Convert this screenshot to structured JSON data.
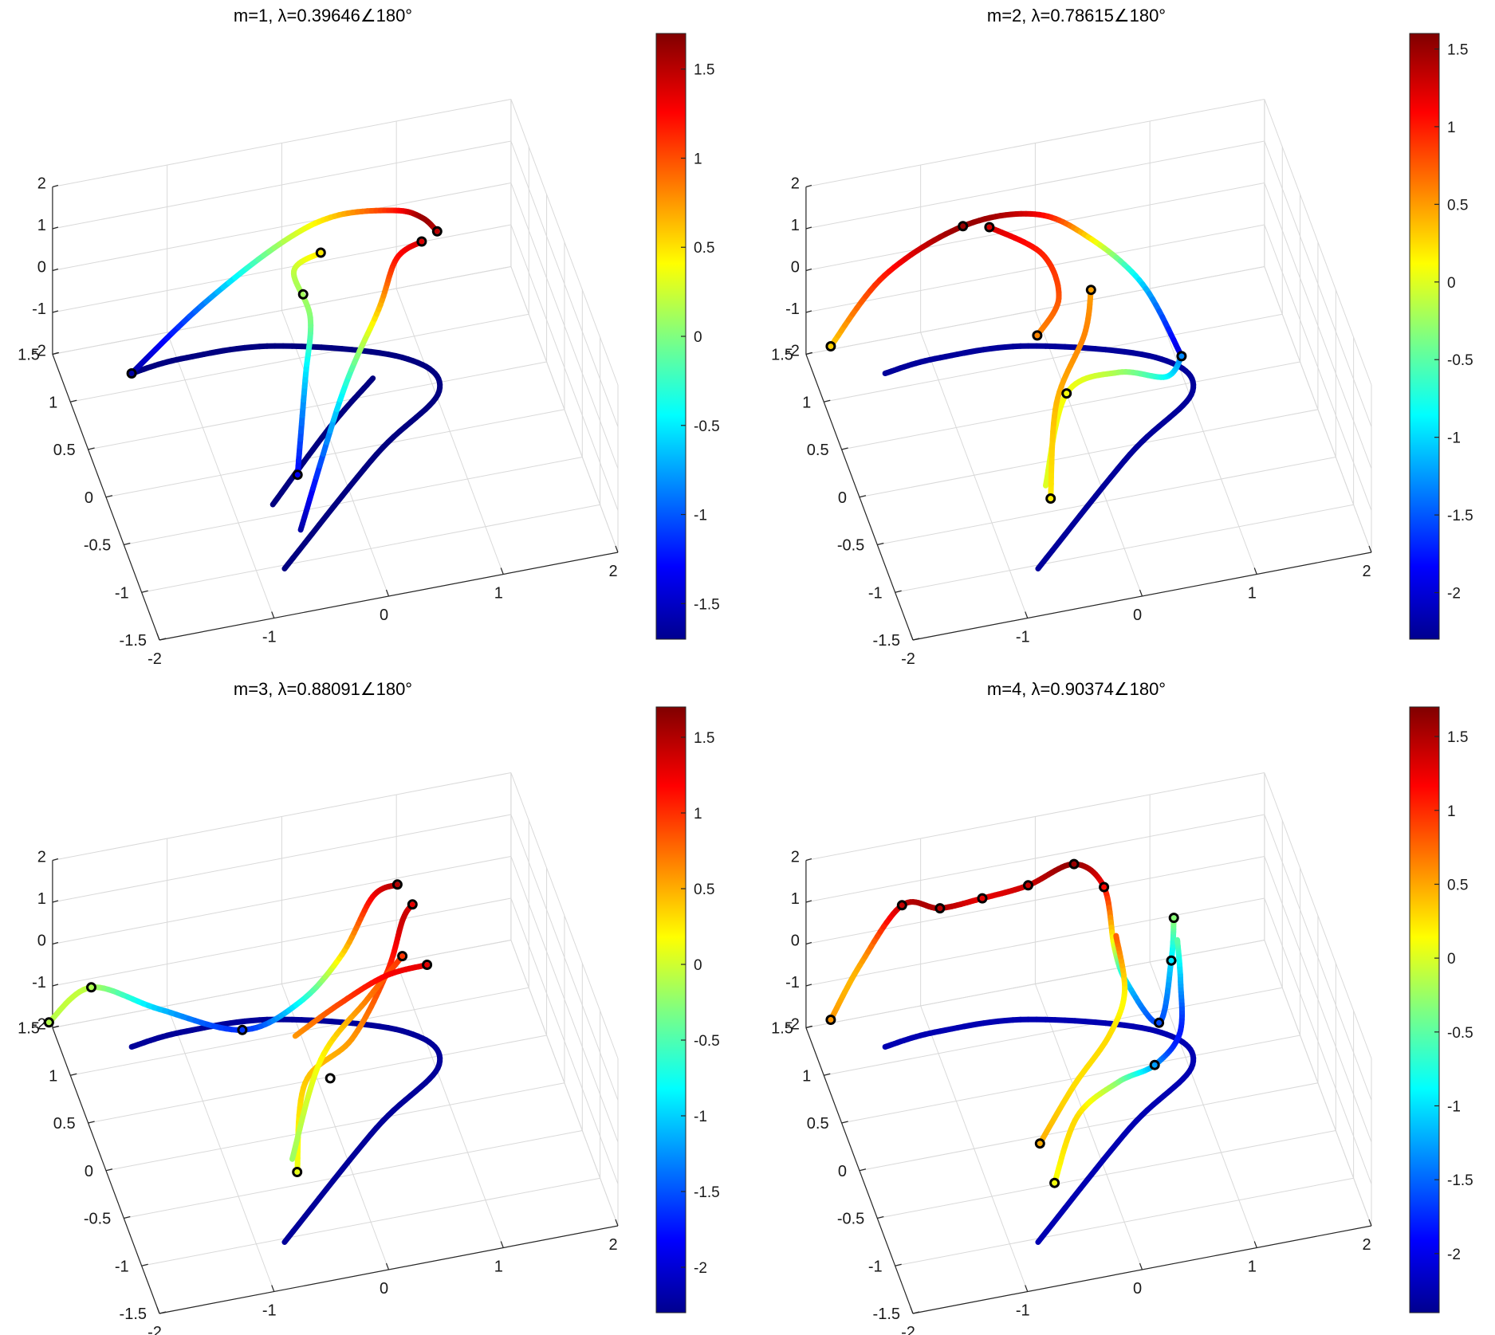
{
  "figure": {
    "layout": "2x2 grid of 3-D trajectory plots with colorbars",
    "colormap": "jet"
  },
  "chart_data": [
    {
      "type": "scatter",
      "title": "m=1, λ=0.39646∠180°",
      "xlabel": "",
      "ylabel": "",
      "zlabel": "",
      "x_ticks": [
        "-2",
        "-1",
        "0",
        "1",
        "2"
      ],
      "y_ticks": [
        "-1.5",
        "-1",
        "-0.5",
        "0",
        "0.5",
        "1",
        "1.5"
      ],
      "z_ticks": [
        "-2",
        "-1",
        "0",
        "1",
        "2"
      ],
      "xlim": [
        -2,
        2
      ],
      "ylim": [
        -1.5,
        1.5
      ],
      "zlim": [
        -2,
        2
      ],
      "grid": true,
      "colorbar": {
        "ticks": [
          "1.5",
          "1",
          "0.5",
          "0",
          "-0.5",
          "-1",
          "-1.5"
        ],
        "range": [
          -1.7,
          1.7
        ],
        "colormap": "jet"
      },
      "series": [
        {
          "points": [
            [
              -1.45,
              1.05,
              -1.72,
              -1.7
            ],
            [
              -1.0,
              1.1,
              -1.72,
              -1.7
            ],
            [
              -0.2,
              1.05,
              -1.72,
              -1.7
            ],
            [
              0.8,
              0.7,
              -1.72,
              -1.7
            ],
            [
              1.0,
              0.3,
              -1.72,
              -1.7
            ],
            [
              0.3,
              -0.2,
              -1.72,
              -1.7
            ],
            [
              -0.8,
              -1.15,
              -1.72,
              -1.7
            ]
          ]
        },
        {
          "points": [
            [
              -0.7,
              -0.5,
              -1.72,
              -1.7
            ],
            [
              0.0,
              0.15,
              -1.72,
              -1.7
            ],
            [
              0.5,
              0.55,
              -1.72,
              -1.7
            ]
          ]
        },
        {
          "points": [
            [
              -1.45,
              1.05,
              -1.72,
              -1.6
            ],
            [
              -0.8,
              1.2,
              -0.8,
              -0.9
            ],
            [
              -0.1,
              1.25,
              0.2,
              0.1
            ],
            [
              0.4,
              1.3,
              0.5,
              0.6
            ],
            [
              0.9,
              1.2,
              0.6,
              1.2
            ],
            [
              1.1,
              1.1,
              0.55,
              1.6
            ],
            [
              1.2,
              1.0,
              0.4,
              1.5
            ]
          ]
        },
        {
          "points": [
            [
              -0.5,
              -0.55,
              -1.0,
              -1.3
            ],
            [
              -0.2,
              0.2,
              -0.6,
              -0.6
            ],
            [
              0.0,
              0.7,
              -0.35,
              0.0
            ],
            [
              -0.05,
              1.0,
              0.1,
              0.2
            ],
            [
              0.2,
              1.05,
              0.3,
              0.5
            ]
          ]
        },
        {
          "points": [
            [
              -0.55,
              -0.8,
              -1.72,
              -1.6
            ],
            [
              0.1,
              0.1,
              -0.8,
              -0.4
            ],
            [
              0.55,
              0.55,
              -0.1,
              0.6
            ],
            [
              0.8,
              0.85,
              0.3,
              1.2
            ],
            [
              1.05,
              0.95,
              0.35,
              1.4
            ]
          ]
        }
      ],
      "markers": [
        [
          -1.45,
          1.05,
          -1.72
        ],
        [
          1.2,
          1.0,
          0.4
        ],
        [
          1.05,
          0.95,
          0.35
        ],
        [
          0.2,
          1.05,
          0.3
        ],
        [
          0.0,
          0.9,
          -0.25
        ],
        [
          -0.5,
          -0.55,
          -1.0
        ]
      ]
    },
    {
      "type": "scatter",
      "title": "m=2, λ=0.78615∠180°",
      "xlabel": "",
      "ylabel": "",
      "zlabel": "",
      "x_ticks": [
        "-2",
        "-1",
        "0",
        "1",
        "2"
      ],
      "y_ticks": [
        "-1.5",
        "-1",
        "-0.5",
        "0",
        "0.5",
        "1",
        "1.5"
      ],
      "z_ticks": [
        "-2",
        "-1",
        "0",
        "1",
        "2"
      ],
      "xlim": [
        -2,
        2
      ],
      "ylim": [
        -1.5,
        1.5
      ],
      "zlim": [
        -2,
        2
      ],
      "grid": true,
      "colorbar": {
        "ticks": [
          "1.5",
          "1",
          "0.5",
          "0",
          "-0.5",
          "-1",
          "-1.5",
          "-2"
        ],
        "range": [
          -2.3,
          1.6
        ],
        "colormap": "jet"
      },
      "series": [
        {
          "points": [
            [
              -1.45,
              1.05,
              -1.72,
              -2.2
            ],
            [
              -1.0,
              1.1,
              -1.72,
              -2.2
            ],
            [
              -0.2,
              1.05,
              -1.72,
              -2.2
            ],
            [
              0.8,
              0.7,
              -1.72,
              -2.2
            ],
            [
              1.0,
              0.3,
              -1.72,
              -2.2
            ],
            [
              0.3,
              -0.2,
              -1.72,
              -2.2
            ],
            [
              -0.8,
              -1.15,
              -1.72,
              -2.2
            ]
          ]
        },
        {
          "points": [
            [
              -1.8,
              1.45,
              -1.8,
              0.3
            ],
            [
              -1.3,
              1.55,
              -0.6,
              1.0
            ],
            [
              -0.6,
              1.6,
              0.1,
              1.5
            ],
            [
              0.0,
              1.5,
              0.3,
              1.2
            ],
            [
              0.4,
              1.3,
              0.0,
              0.3
            ],
            [
              0.75,
              0.9,
              -0.4,
              -1.0
            ],
            [
              0.95,
              0.45,
              -1.2,
              -2.0
            ]
          ]
        },
        {
          "points": [
            [
              -0.4,
              1.5,
              0.2,
              1.3
            ],
            [
              0.0,
              1.3,
              -0.2,
              1.0
            ],
            [
              0.05,
              1.0,
              -0.6,
              0.8
            ],
            [
              -0.2,
              0.8,
              -0.9,
              0.6
            ]
          ]
        },
        {
          "points": [
            [
              -0.5,
              -0.4,
              -1.6,
              0.0
            ],
            [
              -0.1,
              0.3,
              -1.2,
              0.1
            ],
            [
              0.4,
              0.45,
              -1.3,
              -0.2
            ],
            [
              0.8,
              0.4,
              -1.5,
              -0.8
            ],
            [
              0.95,
              0.45,
              -1.2,
              -1.3
            ]
          ]
        },
        {
          "points": [
            [
              -0.55,
              -0.7,
              -1.2,
              0.2
            ],
            [
              -0.25,
              0.1,
              -0.9,
              0.4
            ],
            [
              0.15,
              0.6,
              -0.6,
              0.6
            ],
            [
              0.3,
              0.9,
              -0.3,
              0.5
            ]
          ]
        }
      ],
      "markers": [
        [
          -1.8,
          1.45,
          -1.8
        ],
        [
          -0.6,
          1.6,
          0.1
        ],
        [
          -0.4,
          1.5,
          0.2
        ],
        [
          -0.2,
          0.8,
          -0.9
        ],
        [
          0.3,
          0.9,
          -0.3
        ],
        [
          0.95,
          0.45,
          -1.2
        ],
        [
          -0.55,
          -0.7,
          -1.2
        ],
        [
          -0.1,
          0.3,
          -1.2
        ]
      ]
    },
    {
      "type": "scatter",
      "title": "m=3, λ=0.88091∠180°",
      "xlabel": "",
      "ylabel": "",
      "zlabel": "",
      "x_ticks": [
        "-2",
        "-1",
        "0",
        "1",
        "2"
      ],
      "y_ticks": [
        "-1.5",
        "-1",
        "-0.5",
        "0",
        "0.5",
        "1",
        "1.5"
      ],
      "z_ticks": [
        "-2",
        "-1",
        "0",
        "1",
        "2"
      ],
      "xlim": [
        -2,
        2
      ],
      "ylim": [
        -1.5,
        1.5
      ],
      "zlim": [
        -2,
        2
      ],
      "grid": true,
      "colorbar": {
        "ticks": [
          "1.5",
          "1",
          "0.5",
          "0",
          "-0.5",
          "-1",
          "-1.5",
          "-2"
        ],
        "range": [
          -2.3,
          1.7
        ],
        "colormap": "jet"
      },
      "series": [
        {
          "points": [
            [
              -1.45,
              1.05,
              -1.72,
              -2.2
            ],
            [
              -1.0,
              1.1,
              -1.72,
              -2.2
            ],
            [
              -0.2,
              1.05,
              -1.72,
              -2.2
            ],
            [
              0.8,
              0.7,
              -1.72,
              -2.2
            ],
            [
              1.0,
              0.3,
              -1.72,
              -2.2
            ],
            [
              0.3,
              -0.2,
              -1.72,
              -2.2
            ],
            [
              -0.8,
              -1.15,
              -1.72,
              -2.2
            ]
          ]
        },
        {
          "points": [
            [
              -2.0,
              1.6,
              -2.1,
              -0.1
            ],
            [
              -1.6,
              1.7,
              -1.7,
              -0.1
            ],
            [
              -1.1,
              1.4,
              -1.8,
              -1.0
            ],
            [
              -0.5,
              1.0,
              -1.7,
              -1.6
            ],
            [
              0.0,
              1.0,
              -1.3,
              -0.8
            ],
            [
              0.4,
              1.1,
              -0.6,
              0.3
            ],
            [
              0.7,
              1.2,
              0.4,
              1.2
            ],
            [
              0.9,
              1.15,
              0.7,
              1.5
            ]
          ]
        },
        {
          "points": [
            [
              -0.55,
              -0.7,
              -1.2,
              0.1
            ],
            [
              -0.2,
              0.2,
              -1.3,
              0.4
            ],
            [
              0.3,
              0.5,
              -1.2,
              0.6
            ],
            [
              0.7,
              0.8,
              -0.5,
              1.0
            ],
            [
              0.9,
              1.0,
              0.2,
              1.4
            ],
            [
              1.0,
              1.05,
              0.4,
              1.3
            ]
          ]
        },
        {
          "points": [
            [
              -0.5,
              -0.4,
              -1.6,
              -0.2
            ],
            [
              0.0,
              0.4,
              -1.3,
              0.2
            ],
            [
              0.5,
              0.7,
              -0.8,
              0.7
            ],
            [
              0.85,
              0.85,
              -0.3,
              1.0
            ]
          ]
        },
        {
          "points": [
            [
              -0.1,
              0.8,
              -1.6,
              0.6
            ],
            [
              0.3,
              0.9,
              -1.3,
              0.9
            ],
            [
              0.7,
              0.85,
              -0.7,
              1.2
            ],
            [
              1.05,
              0.8,
              -0.5,
              1.3
            ]
          ]
        }
      ],
      "markers": [
        [
          -2.0,
          1.6,
          -2.1
        ],
        [
          -1.6,
          1.7,
          -1.7
        ],
        [
          -0.5,
          1.0,
          -1.7
        ],
        [
          0.9,
          1.15,
          0.7
        ],
        [
          1.0,
          1.05,
          0.4
        ],
        [
          0.85,
          0.85,
          -0.3
        ],
        [
          1.05,
          0.8,
          -0.5
        ],
        [
          -0.55,
          -0.7,
          -1.2
        ],
        [
          0.05,
          0.3,
          -1.55
        ]
      ]
    },
    {
      "type": "scatter",
      "title": "m=4, λ=0.90374∠180°",
      "xlabel": "",
      "ylabel": "",
      "zlabel": "",
      "x_ticks": [
        "-2",
        "-1",
        "0",
        "1",
        "2"
      ],
      "y_ticks": [
        "-1.5",
        "-1",
        "-0.5",
        "0",
        "0.5",
        "1",
        "1.5"
      ],
      "z_ticks": [
        "-2",
        "-1",
        "0",
        "1",
        "2"
      ],
      "xlim": [
        -2,
        2
      ],
      "ylim": [
        -1.5,
        1.5
      ],
      "zlim": [
        -2,
        2
      ],
      "grid": true,
      "colorbar": {
        "ticks": [
          "1.5",
          "1",
          "0.5",
          "0",
          "-0.5",
          "-1",
          "-1.5",
          "-2"
        ],
        "range": [
          -2.4,
          1.7
        ],
        "colormap": "jet"
      },
      "series": [
        {
          "points": [
            [
              -1.45,
              1.05,
              -1.72,
              -2.2
            ],
            [
              -1.0,
              1.1,
              -1.72,
              -2.2
            ],
            [
              -0.2,
              1.05,
              -1.72,
              -2.2
            ],
            [
              0.8,
              0.7,
              -1.72,
              -2.2
            ],
            [
              1.0,
              0.3,
              -1.72,
              -2.2
            ],
            [
              0.3,
              -0.2,
              -1.72,
              -2.2
            ],
            [
              -0.8,
              -1.15,
              -1.72,
              -2.2
            ]
          ]
        },
        {
          "points": [
            [
              -1.8,
              1.45,
              -1.8,
              0.6
            ],
            [
              -1.5,
              1.6,
              -1.0,
              0.5
            ],
            [
              -1.1,
              1.7,
              0.0,
              1.4
            ],
            [
              -0.8,
              1.6,
              0.0,
              1.5
            ],
            [
              -0.4,
              1.7,
              -0.2,
              1.3
            ],
            [
              0.0,
              1.7,
              -0.1,
              1.4
            ],
            [
              0.4,
              1.7,
              0.2,
              1.6
            ],
            [
              0.6,
              1.5,
              0.0,
              1.2
            ],
            [
              0.6,
              1.2,
              -0.8,
              0.0
            ],
            [
              0.65,
              1.0,
              -1.2,
              -1.0
            ],
            [
              0.8,
              0.6,
              -1.3,
              -1.6
            ],
            [
              1.0,
              0.9,
              -0.6,
              -1.0
            ],
            [
              1.1,
              1.15,
              -0.2,
              -0.3
            ]
          ]
        },
        {
          "points": [
            [
              -0.55,
              -0.4,
              -1.2,
              0.5
            ],
            [
              -0.1,
              0.1,
              -1.2,
              0.3
            ],
            [
              0.3,
              0.4,
              -0.9,
              0.3
            ],
            [
              0.5,
              0.6,
              -0.4,
              0.2
            ],
            [
              0.55,
              1.0,
              0.0,
              0.8
            ]
          ]
        },
        {
          "points": [
            [
              -0.5,
              -0.65,
              -1.6,
              0.1
            ],
            [
              -0.1,
              0.0,
              -1.7,
              0.3
            ],
            [
              0.35,
              0.3,
              -1.8,
              -0.3
            ],
            [
              0.7,
              0.4,
              -1.8,
              -1.2
            ],
            [
              0.95,
              0.5,
              -1.4,
              -1.8
            ],
            [
              1.05,
              0.8,
              -0.9,
              -1.2
            ],
            [
              1.1,
              1.05,
              -0.5,
              -0.5
            ]
          ]
        }
      ],
      "markers": [
        [
          -1.8,
          1.45,
          -1.8
        ],
        [
          -1.1,
          1.7,
          0.0
        ],
        [
          -0.8,
          1.6,
          0.0
        ],
        [
          -0.4,
          1.7,
          -0.2
        ],
        [
          0.0,
          1.7,
          -0.1
        ],
        [
          0.4,
          1.7,
          0.2
        ],
        [
          0.6,
          1.5,
          0.0
        ],
        [
          0.8,
          0.6,
          -1.3
        ],
        [
          1.1,
          1.15,
          -0.2
        ],
        [
          1.0,
          0.9,
          -0.6
        ],
        [
          -0.55,
          -0.4,
          -1.2
        ],
        [
          -0.5,
          -0.65,
          -1.6
        ],
        [
          0.7,
          0.4,
          -1.8
        ]
      ]
    }
  ]
}
